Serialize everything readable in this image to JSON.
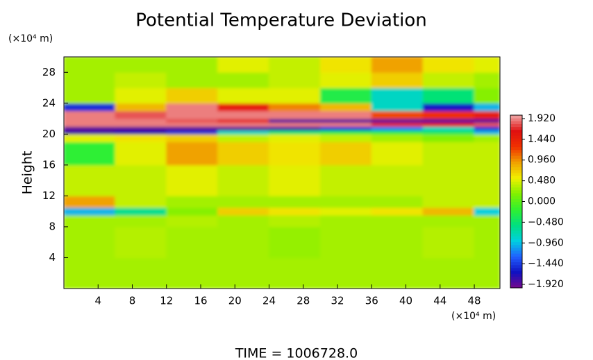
{
  "chart_data": {
    "type": "heatmap",
    "title": "Potential Temperature Deviation",
    "y_label": "Height",
    "y_unit": "(×10⁴ m)",
    "x_unit": "(×10⁴ m)",
    "footer": "TIME = 1006728.0",
    "xlim": [
      0,
      51
    ],
    "ylim": [
      0,
      30
    ],
    "xticks": [
      4,
      8,
      12,
      16,
      20,
      24,
      28,
      32,
      36,
      40,
      44,
      48
    ],
    "yticks": [
      4,
      8,
      12,
      16,
      20,
      24,
      28
    ],
    "x_edges": [
      0,
      6,
      12,
      18,
      24,
      30,
      36,
      42,
      48,
      51
    ],
    "y_edges": [
      0,
      4,
      8,
      9.5,
      10.5,
      12,
      16,
      19,
      20,
      20.5,
      21,
      21.5,
      22,
      23,
      24,
      26,
      28,
      30
    ],
    "z": [
      [
        0.3,
        0.3,
        0.3,
        0.3,
        0.3,
        0.3,
        0.3,
        0.3,
        0.3
      ],
      [
        0.3,
        0.35,
        0.3,
        0.3,
        0.25,
        0.3,
        0.3,
        0.35,
        0.3
      ],
      [
        0.3,
        0.3,
        0.35,
        0.3,
        0.35,
        0.3,
        0.3,
        0.3,
        0.3
      ],
      [
        -1.0,
        -0.6,
        0.2,
        0.7,
        0.6,
        0.5,
        0.6,
        0.8,
        -0.9
      ],
      [
        0.9,
        0.4,
        0.3,
        0.3,
        0.3,
        0.3,
        0.3,
        0.4,
        0.4
      ],
      [
        0.4,
        0.4,
        0.5,
        0.4,
        0.5,
        0.4,
        0.4,
        0.4,
        0.4
      ],
      [
        -0.2,
        0.5,
        0.9,
        0.7,
        0.6,
        0.7,
        0.5,
        0.4,
        0.4
      ],
      [
        0.5,
        0.6,
        0.7,
        0.4,
        0.5,
        0.4,
        0.3,
        0.2,
        0.3
      ],
      [
        -1.8,
        -1.7,
        -1.5,
        -0.8,
        -0.5,
        -0.3,
        -0.3,
        -0.4,
        -1.0
      ],
      [
        -1.9,
        -1.9,
        -1.9,
        -1.9,
        -1.8,
        -1.5,
        -1.2,
        -0.8,
        -1.5
      ],
      [
        1.9,
        1.9,
        1.9,
        1.9,
        1.9,
        1.9,
        1.7,
        1.5,
        1.8
      ],
      [
        1.9,
        1.9,
        1.8,
        1.7,
        -1.9,
        -1.9,
        -1.9,
        -1.9,
        -1.9
      ],
      [
        1.9,
        1.8,
        1.9,
        1.9,
        1.9,
        1.9,
        1.2,
        1.3,
        1.5
      ],
      [
        -1.5,
        0.8,
        1.9,
        1.5,
        1.0,
        0.8,
        -0.8,
        -1.6,
        -1.0
      ],
      [
        0.3,
        0.5,
        0.7,
        0.5,
        0.5,
        -0.3,
        -0.8,
        -0.5,
        0.2
      ],
      [
        0.3,
        0.4,
        0.3,
        0.3,
        0.4,
        0.5,
        0.7,
        0.4,
        0.3
      ],
      [
        0.3,
        0.3,
        0.3,
        0.5,
        0.4,
        0.6,
        0.9,
        0.6,
        0.5
      ]
    ],
    "zlim": [
      -2,
      2
    ],
    "zticks": [
      {
        "value": 1.92,
        "label": "1.920"
      },
      {
        "value": 1.44,
        "label": "1.440"
      },
      {
        "value": 0.96,
        "label": "0.960"
      },
      {
        "value": 0.48,
        "label": "0.480"
      },
      {
        "value": 0,
        "label": "0.000"
      },
      {
        "value": -0.48,
        "label": "−0.480"
      },
      {
        "value": -0.96,
        "label": "−0.960"
      },
      {
        "value": -1.44,
        "label": "−1.440"
      },
      {
        "value": -1.92,
        "label": "−1.920"
      }
    ],
    "colormap": [
      "#780a8c",
      "#1010c0",
      "#2060ff",
      "#00d0e0",
      "#00e080",
      "#30f030",
      "#80f000",
      "#f0f000",
      "#f0a000",
      "#f03000",
      "#e01010",
      "#f0a8a8"
    ]
  }
}
